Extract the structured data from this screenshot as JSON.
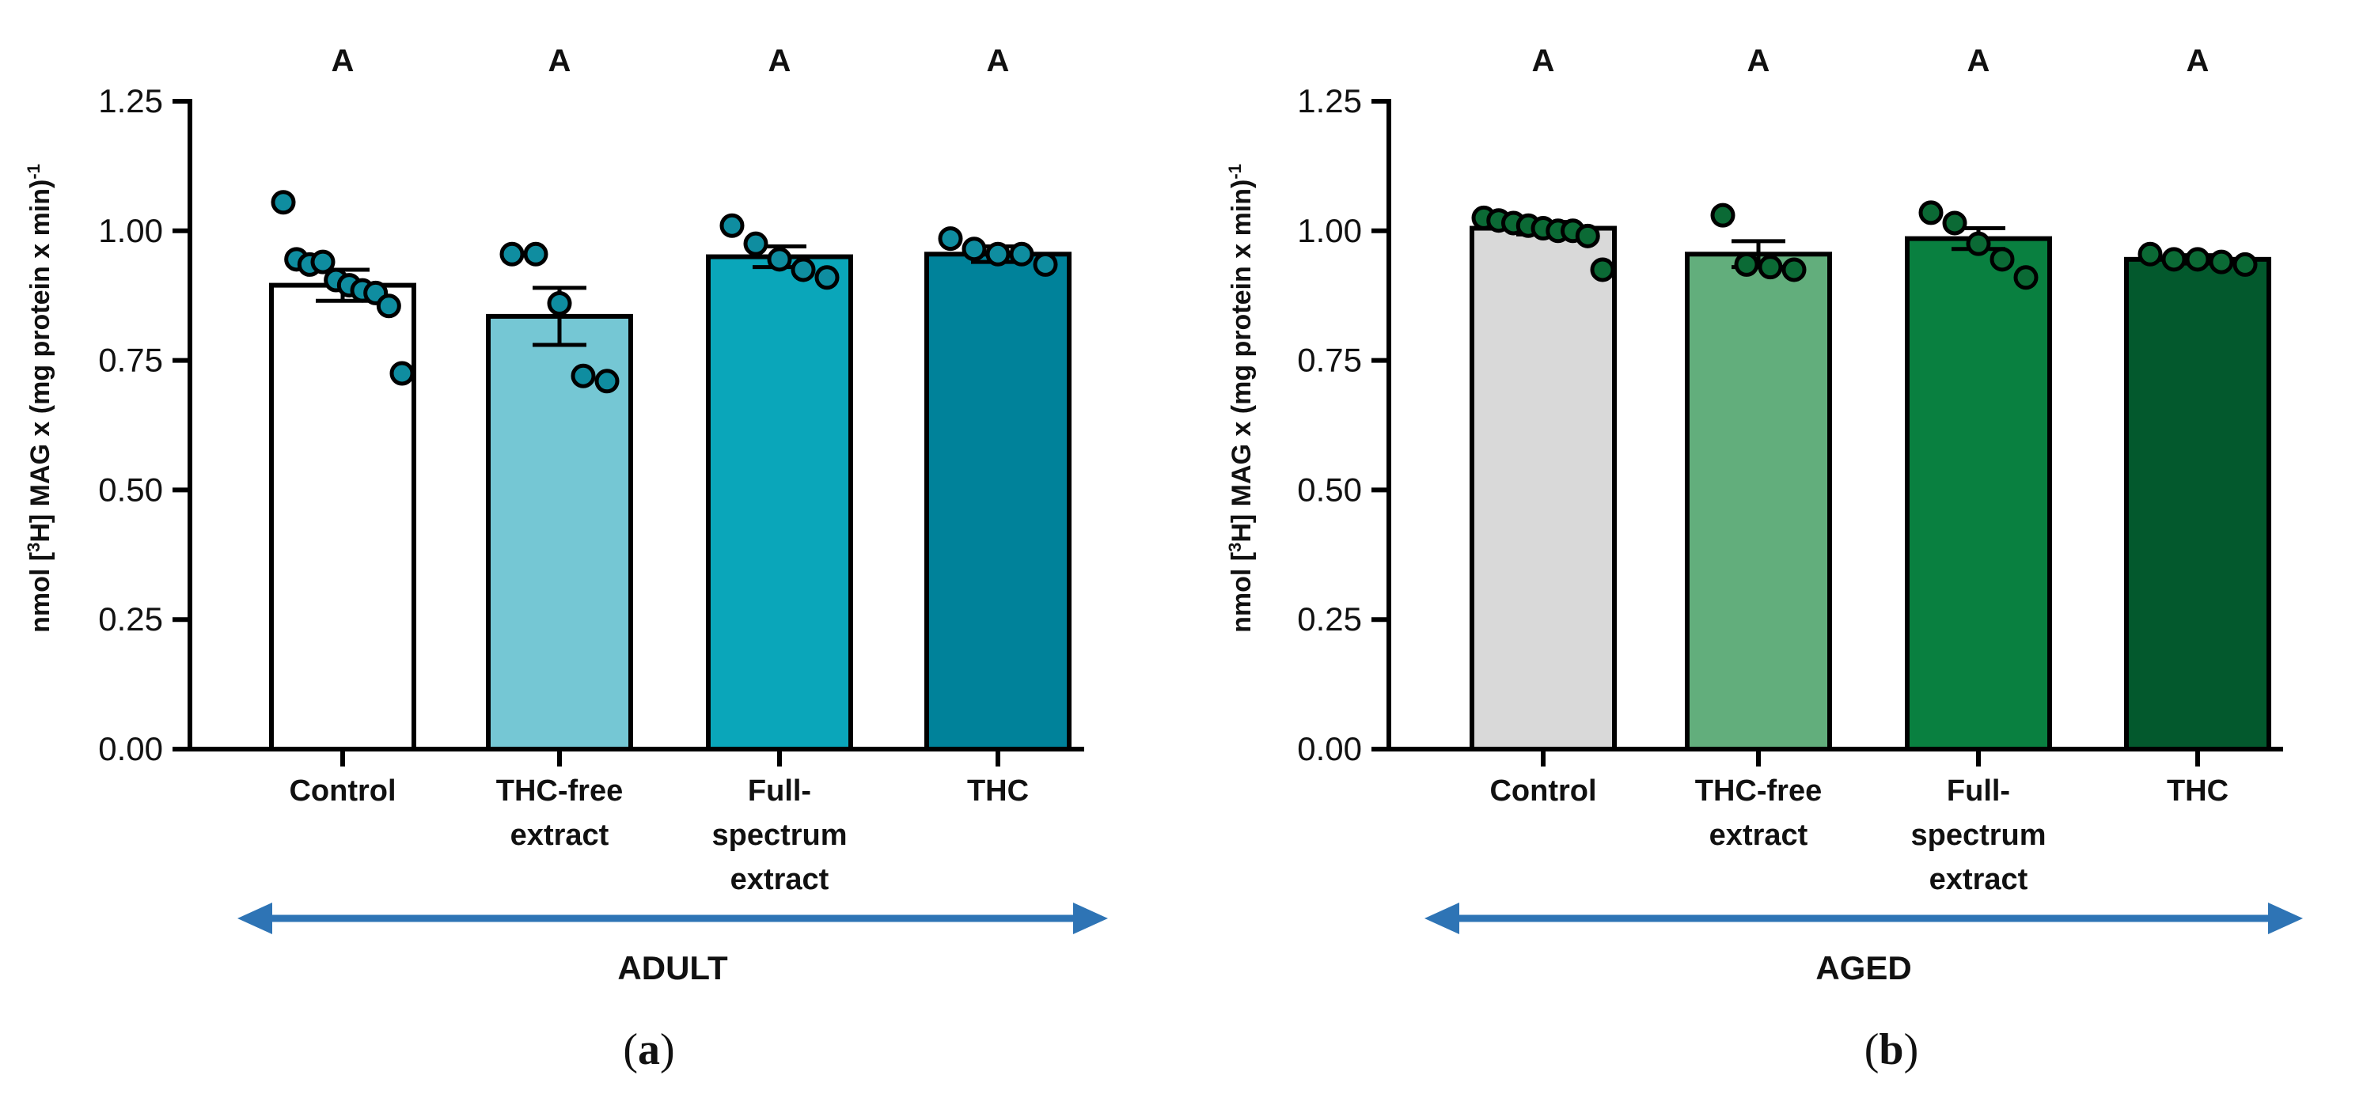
{
  "figure": {
    "panels": [
      {
        "id": "a",
        "label_open": "(",
        "label_letter": "a",
        "label_close": ")"
      },
      {
        "id": "b",
        "label_open": "(",
        "label_letter": "b",
        "label_close": ")"
      }
    ]
  },
  "chart_data": [
    {
      "type": "bar",
      "panel": "a",
      "ylabel_main": "nmol [",
      "ylabel_sup": "3",
      "ylabel_mid": "H] MAG x (mg protein x min)",
      "ylabel_sup2": "-1",
      "ylim": [
        0,
        1.25
      ],
      "yticks": [
        "0.00",
        "0.25",
        "0.50",
        "0.75",
        "1.00",
        "1.25"
      ],
      "ytick_values": [
        0,
        0.25,
        0.5,
        0.75,
        1.0,
        1.25
      ],
      "categories": [
        [
          "Control"
        ],
        [
          "THC-free",
          "extract"
        ],
        [
          "Full-",
          "spectrum",
          "extract"
        ],
        [
          "THC"
        ]
      ],
      "values": [
        0.895,
        0.835,
        0.95,
        0.955
      ],
      "errors": [
        0.03,
        0.055,
        0.02,
        0.015
      ],
      "bar_colors": [
        "#ffffff",
        "#75c7d4",
        "#0aa6ba",
        "#00829a"
      ],
      "point_color": "#0f8da0",
      "points": [
        [
          1.055,
          0.945,
          0.935,
          0.94,
          0.905,
          0.895,
          0.885,
          0.88,
          0.855,
          0.725
        ],
        [
          0.955,
          0.955,
          0.86,
          0.72,
          0.71
        ],
        [
          1.01,
          0.975,
          0.945,
          0.925,
          0.91
        ],
        [
          0.985,
          0.965,
          0.955,
          0.955,
          0.935
        ]
      ],
      "significance": [
        "A",
        "A",
        "A",
        "A"
      ],
      "group_label": "ADULT",
      "arrow_color": "#2e74b5"
    },
    {
      "type": "bar",
      "panel": "b",
      "ylabel_main": "nmol [",
      "ylabel_sup": "3",
      "ylabel_mid": "H] MAG x (mg protein x min)",
      "ylabel_sup2": "-1",
      "ylim": [
        0,
        1.25
      ],
      "yticks": [
        "0.00",
        "0.25",
        "0.50",
        "0.75",
        "1.00",
        "1.25"
      ],
      "ytick_values": [
        0,
        0.25,
        0.5,
        0.75,
        1.0,
        1.25
      ],
      "categories": [
        [
          "Control"
        ],
        [
          "THC-free",
          "extract"
        ],
        [
          "Full-",
          "spectrum",
          "extract"
        ],
        [
          "THC"
        ]
      ],
      "values": [
        1.005,
        0.955,
        0.985,
        0.945
      ],
      "errors": [
        0.012,
        0.025,
        0.02,
        0.008
      ],
      "bar_colors": [
        "#d9d9d9",
        "#62ae7c",
        "#098040",
        "#03592d"
      ],
      "point_color": "#0b6a35",
      "points": [
        [
          1.025,
          1.02,
          1.015,
          1.01,
          1.005,
          1.0,
          1.0,
          0.99,
          0.925
        ],
        [
          1.03,
          0.935,
          0.93,
          0.925
        ],
        [
          1.035,
          1.015,
          0.975,
          0.945,
          0.91
        ],
        [
          0.955,
          0.945,
          0.945,
          0.94,
          0.935
        ]
      ],
      "significance": [
        "A",
        "A",
        "A",
        "A"
      ],
      "group_label": "AGED",
      "arrow_color": "#2e74b5"
    }
  ]
}
